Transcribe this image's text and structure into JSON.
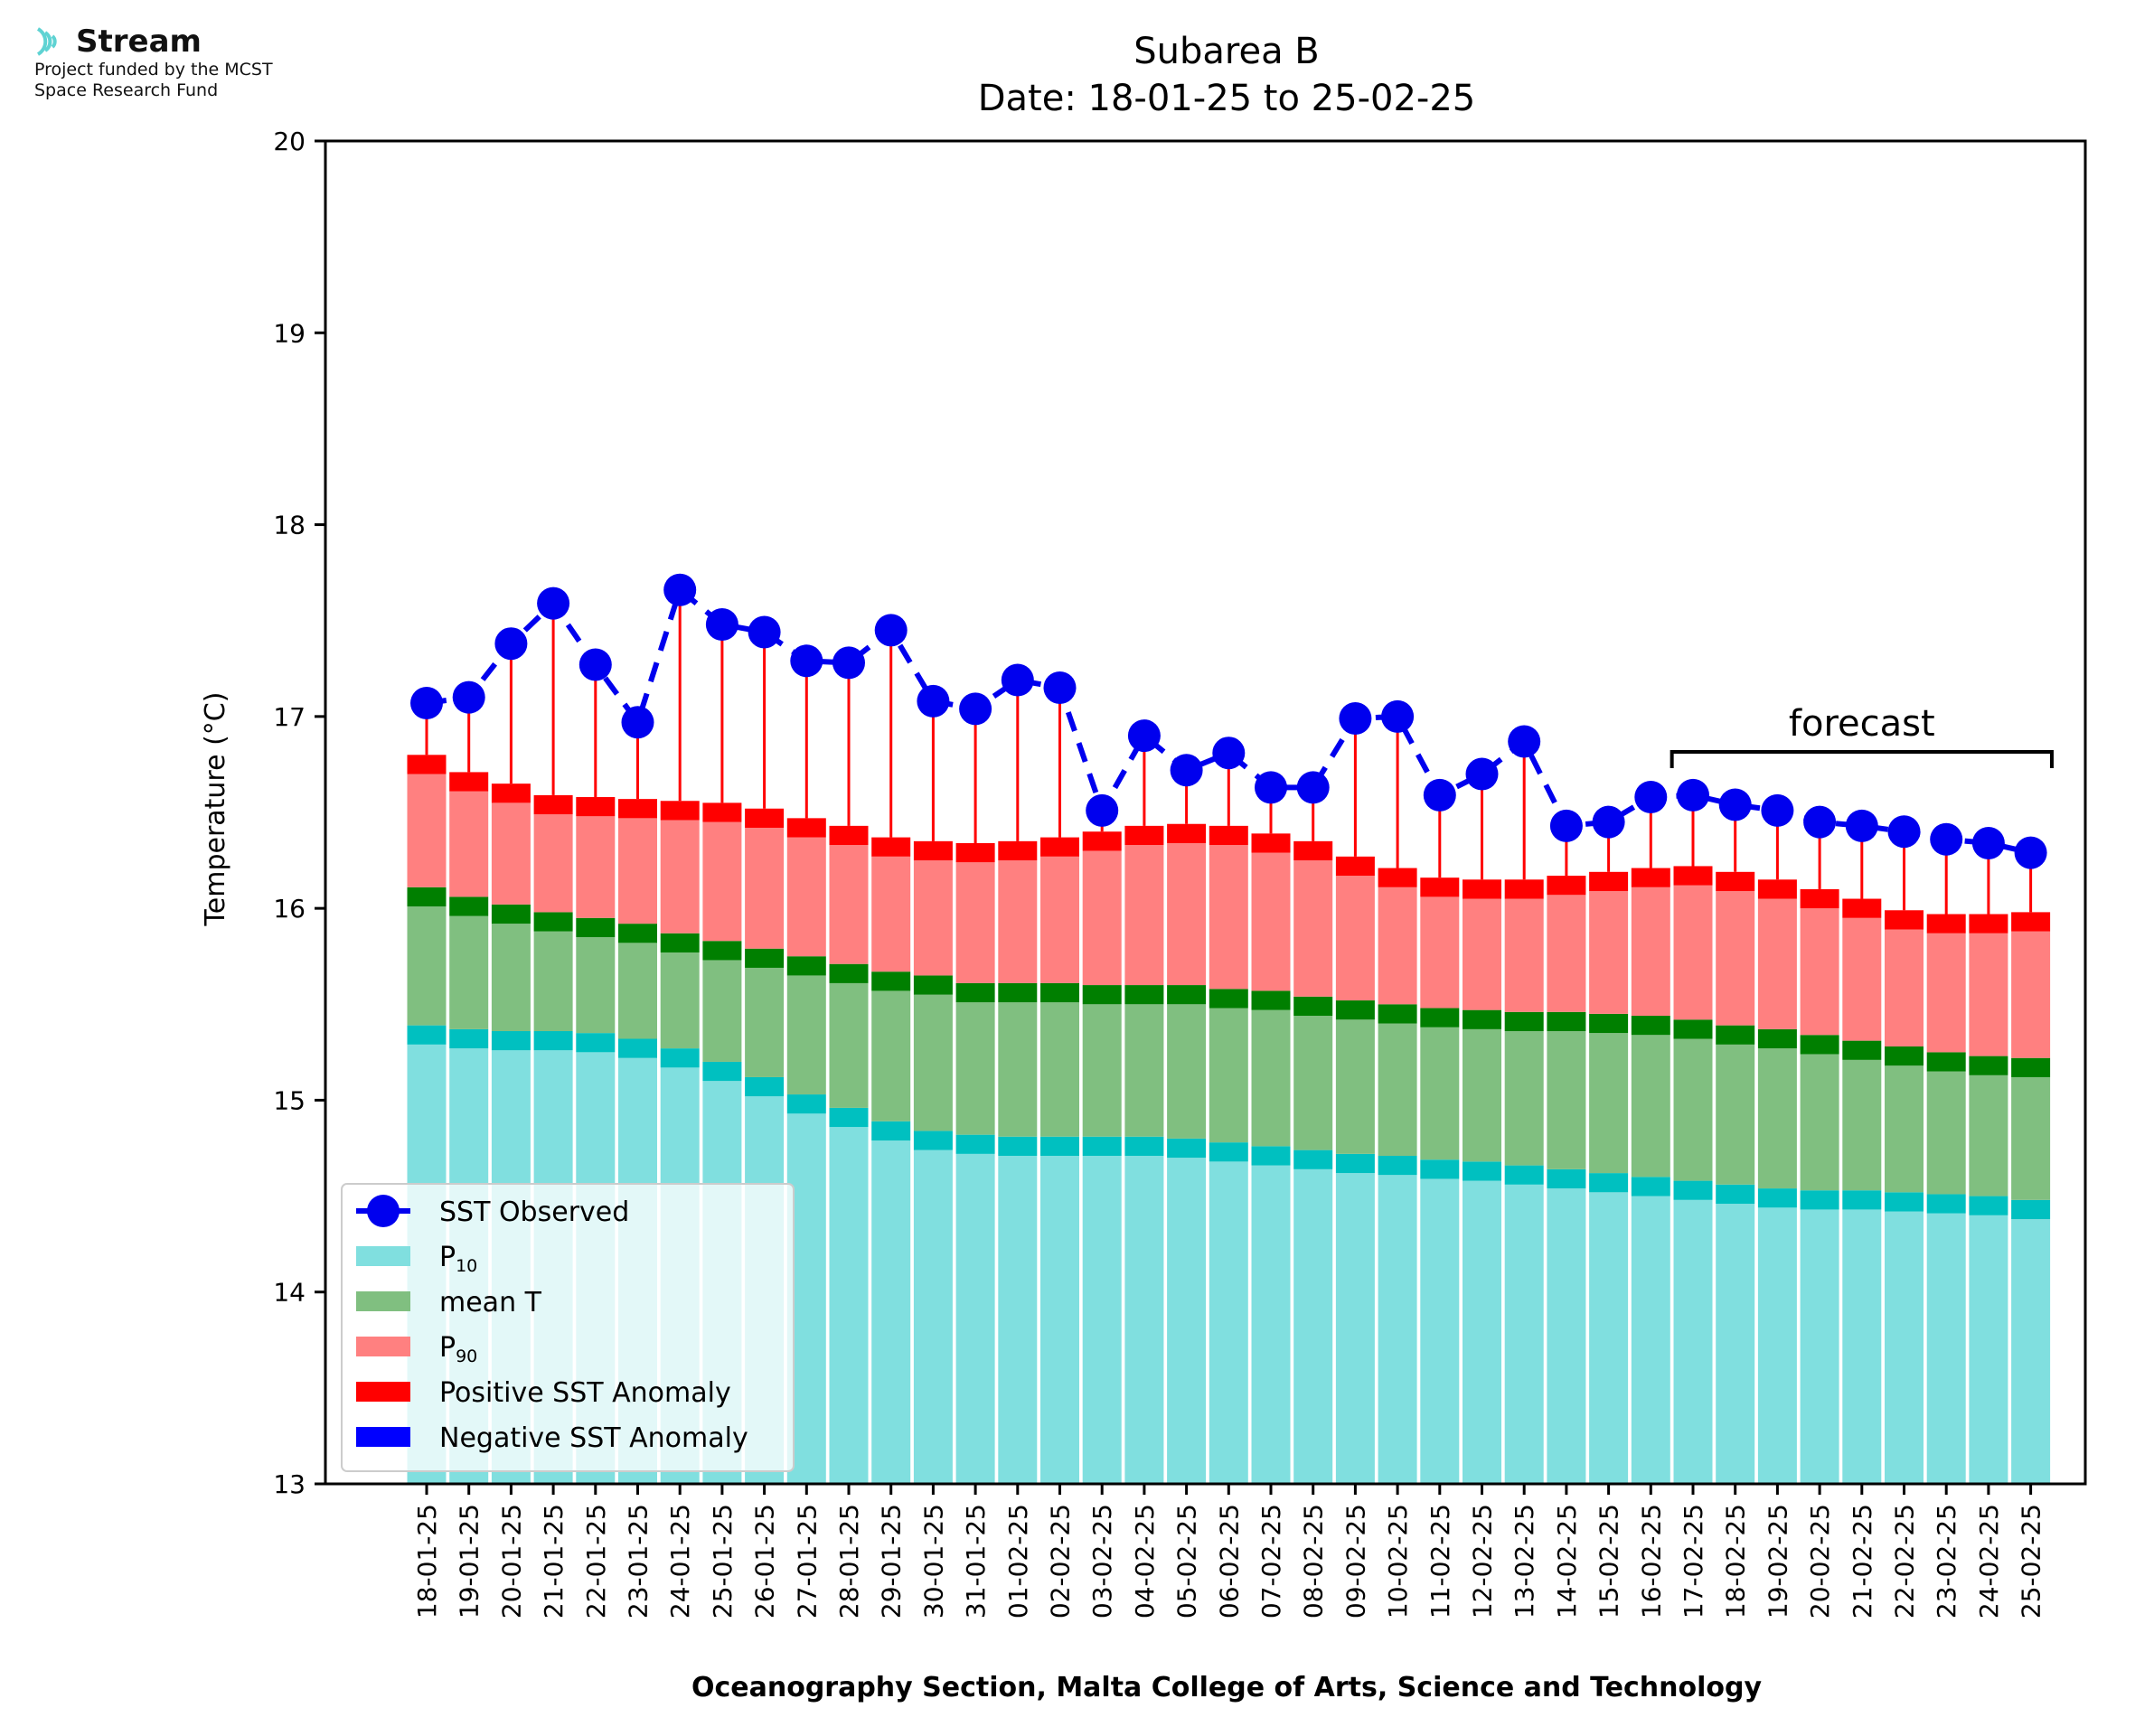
{
  "logo": {
    "name": "Stream",
    "line1": "Project funded by the MCST",
    "line2": "Space Research Fund",
    "icon": "stream-waves-icon"
  },
  "chart_data": {
    "type": "bar",
    "title": "Subarea B",
    "subtitle": "Date: 18-01-25 to 25-02-25",
    "xlabel": "Oceanography Section, Malta College of Arts, Science and Technology",
    "ylabel": "Temperature (°C)",
    "ylim": [
      13,
      20
    ],
    "yticks": [
      "13",
      "14",
      "15",
      "16",
      "17",
      "18",
      "19",
      "20"
    ],
    "annotation": "forecast",
    "forecast_range": [
      "17-02-25",
      "25-02-25"
    ],
    "categories": [
      "18-01-25",
      "19-01-25",
      "20-01-25",
      "21-01-25",
      "22-01-25",
      "23-01-25",
      "24-01-25",
      "25-01-25",
      "26-01-25",
      "27-01-25",
      "28-01-25",
      "29-01-25",
      "30-01-25",
      "31-01-25",
      "01-02-25",
      "02-02-25",
      "03-02-25",
      "04-02-25",
      "05-02-25",
      "06-02-25",
      "07-02-25",
      "08-02-25",
      "09-02-25",
      "10-02-25",
      "11-02-25",
      "12-02-25",
      "13-02-25",
      "14-02-25",
      "15-02-25",
      "16-02-25",
      "17-02-25",
      "18-02-25",
      "19-02-25",
      "20-02-25",
      "21-02-25",
      "22-02-25",
      "23-02-25",
      "24-02-25",
      "25-02-25"
    ],
    "series": [
      {
        "name": "SST Observed",
        "color": "#0000ee",
        "values": [
          17.07,
          17.1,
          17.38,
          17.59,
          17.27,
          16.97,
          17.66,
          17.48,
          17.44,
          17.29,
          17.28,
          17.45,
          17.08,
          17.04,
          17.19,
          17.15,
          16.51,
          16.9,
          16.72,
          16.81,
          16.63,
          16.63,
          16.99,
          17.0,
          16.59,
          16.7,
          16.87,
          16.43,
          16.45,
          16.58,
          16.59,
          16.54,
          16.51,
          16.45,
          16.43,
          16.4,
          16.36,
          16.34,
          16.29
        ]
      },
      {
        "name": "P10",
        "color": "#80dfdf",
        "values": [
          15.39,
          15.37,
          15.36,
          15.36,
          15.35,
          15.32,
          15.27,
          15.2,
          15.12,
          15.03,
          14.96,
          14.89,
          14.84,
          14.82,
          14.81,
          14.81,
          14.81,
          14.81,
          14.8,
          14.78,
          14.76,
          14.74,
          14.72,
          14.71,
          14.69,
          14.68,
          14.66,
          14.64,
          14.62,
          14.6,
          14.58,
          14.56,
          14.54,
          14.53,
          14.53,
          14.52,
          14.51,
          14.5,
          14.48
        ]
      },
      {
        "name": "mean T",
        "color": "#80bf80",
        "values": [
          16.11,
          16.06,
          16.02,
          15.98,
          15.95,
          15.92,
          15.87,
          15.83,
          15.79,
          15.75,
          15.71,
          15.67,
          15.65,
          15.61,
          15.61,
          15.61,
          15.6,
          15.6,
          15.6,
          15.58,
          15.57,
          15.54,
          15.52,
          15.5,
          15.48,
          15.47,
          15.46,
          15.46,
          15.45,
          15.44,
          15.42,
          15.39,
          15.37,
          15.34,
          15.31,
          15.28,
          15.25,
          15.23,
          15.22
        ]
      },
      {
        "name": "P90",
        "color": "#ff8080",
        "values": [
          16.8,
          16.71,
          16.65,
          16.59,
          16.58,
          16.57,
          16.56,
          16.55,
          16.52,
          16.47,
          16.43,
          16.37,
          16.35,
          16.34,
          16.35,
          16.37,
          16.4,
          16.43,
          16.44,
          16.43,
          16.39,
          16.35,
          16.27,
          16.21,
          16.16,
          16.15,
          16.15,
          16.17,
          16.19,
          16.21,
          16.22,
          16.19,
          16.15,
          16.1,
          16.05,
          15.99,
          15.97,
          15.97,
          15.98
        ]
      }
    ],
    "legend": {
      "placement": "lower-left",
      "entries": [
        {
          "label": "SST Observed",
          "color": "#0000ee",
          "kind": "line-marker"
        },
        {
          "label": "P",
          "sub": "10",
          "color": "#80dfdf",
          "kind": "patch"
        },
        {
          "label": "mean T",
          "color": "#80bf80",
          "kind": "patch"
        },
        {
          "label": "P",
          "sub": "90",
          "color": "#ff8080",
          "kind": "patch"
        },
        {
          "label": "Positive SST Anomaly",
          "color": "#ff0000",
          "kind": "patch"
        },
        {
          "label": "Negative SST Anomaly",
          "color": "#0000ff",
          "kind": "patch"
        }
      ]
    },
    "colors": {
      "p10_cap": "#00c0c0",
      "mean_cap": "#007f00",
      "p90_cap": "#ff0000",
      "anomaly_positive": "#ff0000",
      "observed": "#0000ee"
    },
    "grid": false
  }
}
